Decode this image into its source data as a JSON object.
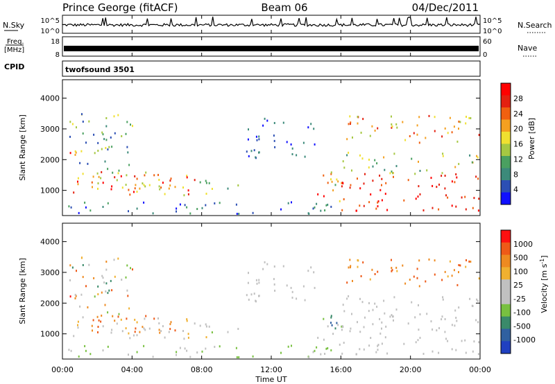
{
  "header": {
    "station": "Prince George (fitACF)",
    "beam": "Beam 06",
    "date": "04/Dec/2011"
  },
  "colors": {
    "power_scale": [
      "#1010ff",
      "#2c4fb4",
      "#3c8a7a",
      "#4aa060",
      "#a6c842",
      "#f0e030",
      "#f4a020",
      "#f06010",
      "#e42010",
      "#ff0000"
    ],
    "velocity_scale": [
      "#2040c0",
      "#3060a0",
      "#3a8a6a",
      "#78c040",
      "#c0c0c0",
      "#c0c0c0",
      "#f0b030",
      "#ee8a20",
      "#ee5a18",
      "#ff1010"
    ]
  },
  "chart_data": [
    {
      "type": "line",
      "name": "noise-panel",
      "left_label": "N.Sky",
      "right_label": "N.Search",
      "left_ticks": [
        "10^5",
        "10^0"
      ],
      "right_ticks": [
        "10^5",
        "10^0"
      ]
    },
    {
      "type": "bar",
      "name": "frequency-panel",
      "left_label_top": "Freq.",
      "left_label_unit": "[MHz]",
      "left_ticks": [
        "18",
        "8"
      ],
      "right_label": "Nave",
      "right_ticks": [
        "60",
        "0"
      ]
    },
    {
      "type": "table",
      "name": "cpid-panel",
      "label": "CPID",
      "program": "twofsound 3501"
    },
    {
      "type": "heatmap",
      "name": "power-panel",
      "ylabel": "Slant Range [km]",
      "yticks": [
        "1000",
        "2000",
        "3000",
        "4000"
      ],
      "yticks_values": [
        1000,
        2000,
        3000,
        4000
      ],
      "ylim": [
        180,
        4600
      ],
      "colorbar_label": "Power [dB]",
      "colorbar_ticks": [
        "28",
        "24",
        "20",
        "16",
        "12",
        "8",
        "4"
      ]
    },
    {
      "type": "heatmap",
      "name": "velocity-panel",
      "ylabel": "Slant Range [km]",
      "yticks": [
        "1000",
        "2000",
        "3000",
        "4000"
      ],
      "yticks_values": [
        1000,
        2000,
        3000,
        4000
      ],
      "ylim": [
        180,
        4600
      ],
      "colorbar_label": "Velocity [m s",
      "colorbar_sup": "-1",
      "colorbar_end": "]",
      "colorbar_ticks": [
        "1000",
        "500",
        "100",
        "25",
        "-25",
        "-100",
        "-500",
        "-1000"
      ]
    }
  ],
  "x_axis": {
    "label": "Time UT",
    "ticks": [
      "00:00",
      "04:00",
      "08:00",
      "12:00",
      "16:00",
      "20:00",
      "00:00"
    ],
    "tick_hours": [
      0,
      4,
      8,
      12,
      16,
      20,
      24
    ],
    "range_hours": [
      0,
      24
    ]
  },
  "scatter_regions": [
    {
      "t0": 0.0,
      "t1": 7.8,
      "r0": 800,
      "r1": 1500,
      "pow": [
        4,
        9
      ],
      "vel": [
        4,
        6
      ]
    },
    {
      "t0": 1.6,
      "t1": 7.0,
      "r0": 1000,
      "r1": 1700,
      "pow": [
        4,
        8
      ],
      "vel": [
        7,
        8
      ]
    },
    {
      "t0": 0.1,
      "t1": 0.8,
      "r0": 2000,
      "r1": 2600,
      "pow": [
        6,
        9
      ],
      "vel": [
        7,
        9
      ]
    },
    {
      "t0": 0.3,
      "t1": 4.0,
      "r0": 1500,
      "r1": 3500,
      "pow": [
        1,
        5
      ],
      "vel": [
        2,
        8
      ]
    },
    {
      "t0": 7.8,
      "t1": 10.3,
      "r0": 950,
      "r1": 1250,
      "pow": [
        2,
        5
      ],
      "vel": [
        4,
        5
      ]
    },
    {
      "t0": 8.2,
      "t1": 8.7,
      "r0": 700,
      "r1": 1800,
      "pow": [
        3,
        6
      ],
      "vel": [
        3,
        6
      ]
    },
    {
      "t0": 0.0,
      "t1": 16.0,
      "r0": 200,
      "r1": 600,
      "pow": [
        0,
        3
      ],
      "vel": [
        3,
        4
      ]
    },
    {
      "t0": 10.5,
      "t1": 14.5,
      "r0": 2000,
      "r1": 3300,
      "pow": [
        0,
        2
      ],
      "vel": [
        4,
        5
      ]
    },
    {
      "t0": 14.0,
      "t1": 16.0,
      "r0": 1100,
      "r1": 1700,
      "pow": [
        3,
        7
      ],
      "vel": [
        1,
        3
      ]
    },
    {
      "t0": 14.5,
      "t1": 16.5,
      "r0": 600,
      "r1": 1400,
      "pow": [
        5,
        9
      ],
      "vel": [
        4,
        5
      ]
    },
    {
      "t0": 16.0,
      "t1": 24.0,
      "r0": 300,
      "r1": 1500,
      "pow": [
        7,
        9
      ],
      "vel": [
        4,
        5
      ]
    },
    {
      "t0": 16.0,
      "t1": 24.0,
      "r0": 1500,
      "r1": 2200,
      "pow": [
        2,
        6
      ],
      "vel": [
        4,
        5
      ]
    },
    {
      "t0": 16.3,
      "t1": 24.0,
      "r0": 2500,
      "r1": 3500,
      "pow": [
        4,
        8
      ],
      "vel": [
        6,
        8
      ]
    }
  ]
}
